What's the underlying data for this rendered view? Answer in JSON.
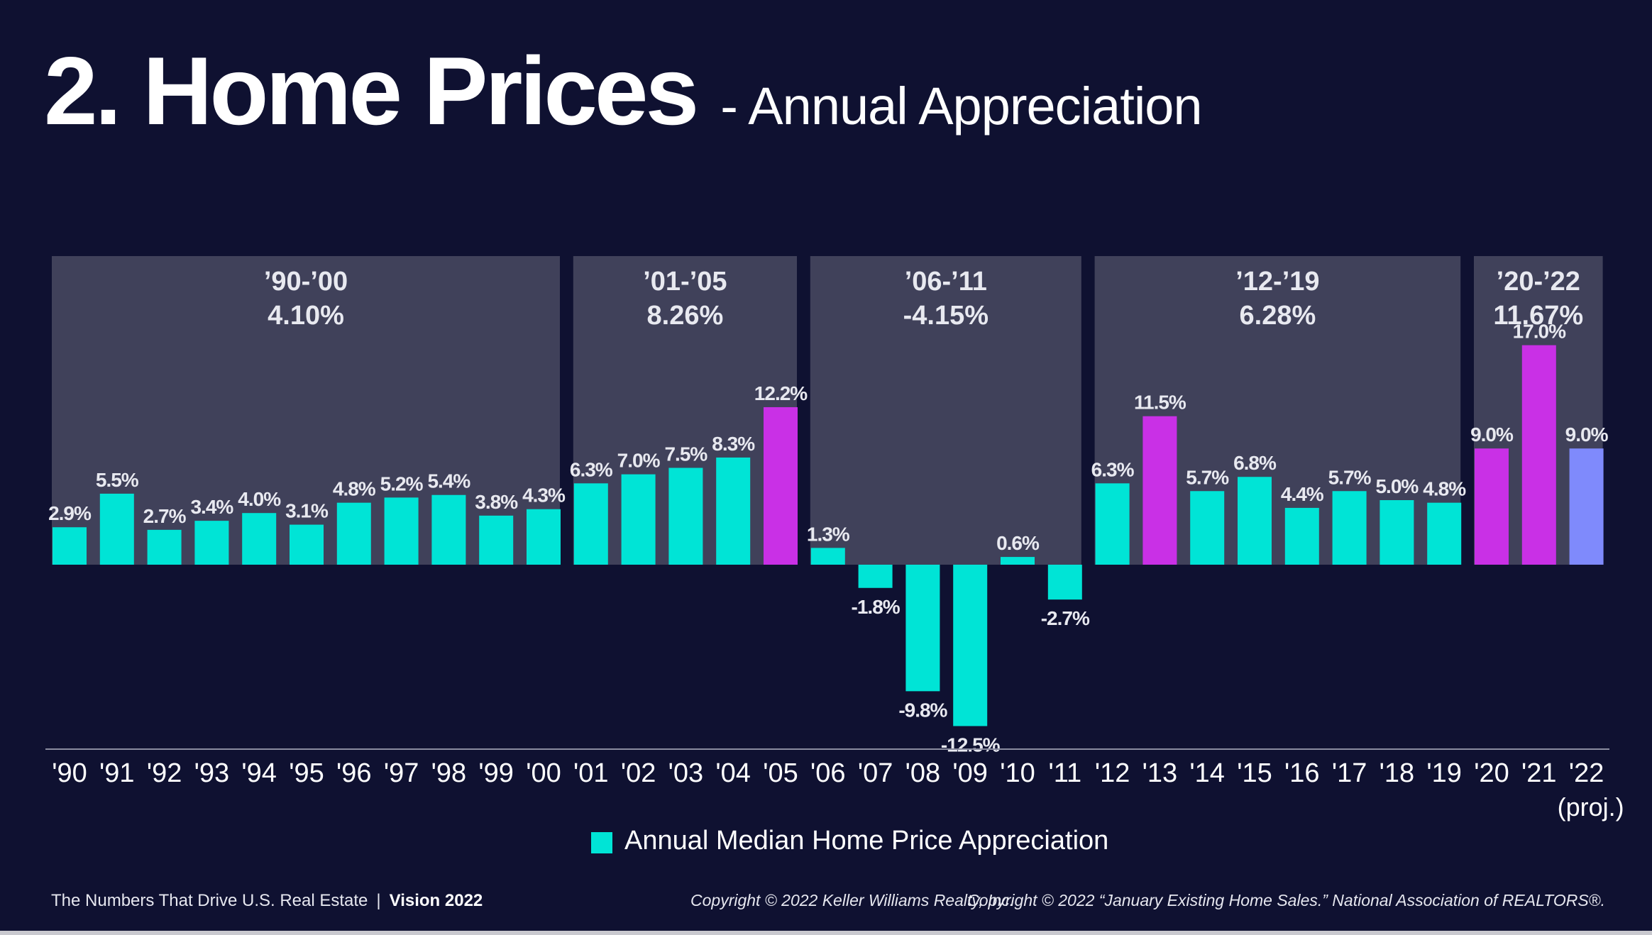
{
  "title": "2. Home Prices",
  "subtitle": "- Annual Appreciation",
  "footer": {
    "left": "The Numbers That Drive U.S. Real Estate",
    "separator": "|",
    "left_bold": "Vision 2022",
    "middle": "Copyright © 2022 Keller Williams Realty, Inc.",
    "right": "Copyright © 2022 “January Existing Home Sales.” National Association of REALTORS®."
  },
  "colors": {
    "background": "#0f1131",
    "panel": "#40415a",
    "teal": "#00e4d6",
    "magenta": "#c930e6",
    "projection": "#7f8afc",
    "axis_line": "#8a8ca0",
    "text": "#ffffff",
    "panel_text": "#e8e9f0"
  },
  "chart_data": {
    "type": "bar",
    "categories": [
      "'90",
      "'91",
      "'92",
      "'93",
      "'94",
      "'95",
      "'96",
      "'97",
      "'98",
      "'99",
      "'00",
      "'01",
      "'02",
      "'03",
      "'04",
      "'05",
      "'06",
      "'07",
      "'08",
      "'09",
      "'10",
      "'11",
      "'12",
      "'13",
      "'14",
      "'15",
      "'16",
      "'17",
      "'18",
      "'19",
      "'20",
      "'21",
      "'22"
    ],
    "category_note": "(proj.)",
    "series": [
      {
        "name": "Annual Median Home Price Appreciation",
        "values": [
          2.9,
          5.5,
          2.7,
          3.4,
          4.0,
          3.1,
          4.8,
          5.2,
          5.4,
          3.8,
          4.3,
          6.3,
          7.0,
          7.5,
          8.3,
          12.2,
          1.3,
          -1.8,
          -9.8,
          -12.5,
          0.6,
          -2.7,
          6.3,
          11.5,
          5.7,
          6.8,
          4.4,
          5.7,
          5.0,
          4.8,
          9.0,
          17.0,
          9.0
        ],
        "labels": [
          "2.9%",
          "5.5%",
          "2.7%",
          "3.4%",
          "4.0%",
          "3.1%",
          "4.8%",
          "5.2%",
          "5.4%",
          "3.8%",
          "4.3%",
          "6.3%",
          "7.0%",
          "7.5%",
          "8.3%",
          "12.2%",
          "1.3%",
          "-1.8%",
          "-9.8%",
          "-12.5%",
          "0.6%",
          "-2.7%",
          "6.3%",
          "11.5%",
          "5.7%",
          "6.8%",
          "4.4%",
          "5.7%",
          "5.0%",
          "4.8%",
          "9.0%",
          "17.0%",
          "9.0%"
        ],
        "bar_colors": [
          "teal",
          "teal",
          "teal",
          "teal",
          "teal",
          "teal",
          "teal",
          "teal",
          "teal",
          "teal",
          "teal",
          "teal",
          "teal",
          "teal",
          "teal",
          "magenta",
          "teal",
          "teal",
          "teal",
          "teal",
          "teal",
          "teal",
          "teal",
          "magenta",
          "teal",
          "teal",
          "teal",
          "teal",
          "teal",
          "teal",
          "magenta",
          "magenta",
          "projection"
        ]
      }
    ],
    "periods": [
      {
        "label": "’90-’00",
        "value": "4.10%",
        "start": 0,
        "end": 10
      },
      {
        "label": "’01-’05",
        "value": "8.26%",
        "start": 11,
        "end": 15
      },
      {
        "label": "’06-’11",
        "value": "-4.15%",
        "start": 16,
        "end": 21
      },
      {
        "label": "’12-’19",
        "value": "6.28%",
        "start": 22,
        "end": 29
      },
      {
        "label": "’20-’22",
        "value": "11.67%",
        "start": 30,
        "end": 32
      }
    ],
    "legend": {
      "label": "Annual Median Home Price Appreciation",
      "color": "teal",
      "position": "bottom-center"
    },
    "xlabel": "",
    "ylabel": "",
    "grid": false
  }
}
